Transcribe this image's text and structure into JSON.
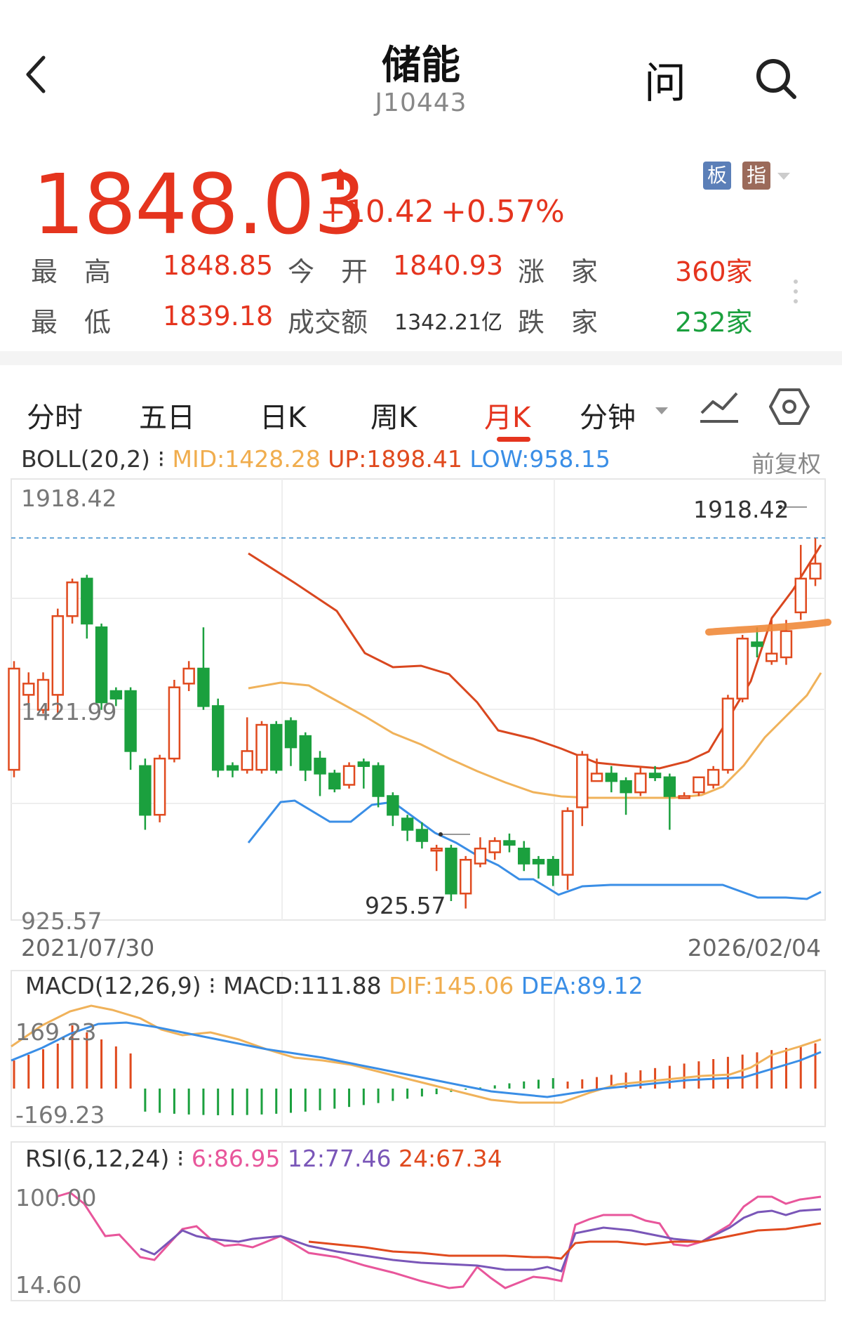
{
  "header": {
    "title": "储能",
    "code": "J10443",
    "ask_label": "问"
  },
  "quote": {
    "price": "1848.03",
    "change": "+10.42",
    "change_pct": "+0.57%",
    "tag_board": "板",
    "tag_index": "指",
    "stats": {
      "high_label": "最　高",
      "high_value": "1848.85",
      "open_label": "今　开",
      "open_value": "1840.93",
      "up_label": "涨　家",
      "up_value": "360家",
      "low_label": "最　低",
      "low_value": "1839.18",
      "amount_label": "成交额",
      "amount_value": "1342.21亿",
      "down_label": "跌　家",
      "down_value": "232家"
    },
    "colors": {
      "up": "#e5341e",
      "down": "#1ba03e"
    }
  },
  "tabs": {
    "items": [
      "分时",
      "五日",
      "日K",
      "周K",
      "月K",
      "分钟"
    ],
    "active": "月K"
  },
  "boll": {
    "title": "BOLL(20,2)",
    "mid": "MID:1428.28",
    "up": "UP:1898.41",
    "low": "LOW:958.15",
    "adjust": "前复权"
  },
  "chart_data": {
    "type": "candlestick",
    "y_axis_top": "1918.42",
    "y_axis_mid": "1421.99",
    "y_axis_bottom": "925.57",
    "max_annotation": "1918.42",
    "min_annotation": "925.57",
    "date_start": "2021/07/30",
    "date_end": "2026/02/04",
    "ylim": [
      925.57,
      1918.42
    ],
    "candles": [
      {
        "o": 1300,
        "c": 1570,
        "h": 1590,
        "l": 1280
      },
      {
        "o": 1500,
        "c": 1530,
        "h": 1560,
        "l": 1450
      },
      {
        "o": 1460,
        "c": 1540,
        "h": 1560,
        "l": 1450
      },
      {
        "o": 1500,
        "c": 1710,
        "h": 1730,
        "l": 1450
      },
      {
        "o": 1710,
        "c": 1800,
        "h": 1810,
        "l": 1690
      },
      {
        "o": 1810,
        "c": 1690,
        "h": 1820,
        "l": 1650
      },
      {
        "o": 1680,
        "c": 1480,
        "h": 1690,
        "l": 1460
      },
      {
        "o": 1510,
        "c": 1490,
        "h": 1520,
        "l": 1470
      },
      {
        "o": 1510,
        "c": 1350,
        "h": 1520,
        "l": 1300
      },
      {
        "o": 1310,
        "c": 1180,
        "h": 1330,
        "l": 1140
      },
      {
        "o": 1180,
        "c": 1330,
        "h": 1340,
        "l": 1160
      },
      {
        "o": 1330,
        "c": 1520,
        "h": 1540,
        "l": 1320
      },
      {
        "o": 1530,
        "c": 1570,
        "h": 1590,
        "l": 1510
      },
      {
        "o": 1570,
        "c": 1470,
        "h": 1680,
        "l": 1460
      },
      {
        "o": 1470,
        "c": 1300,
        "h": 1490,
        "l": 1280
      },
      {
        "o": 1310,
        "c": 1300,
        "h": 1320,
        "l": 1280
      },
      {
        "o": 1300,
        "c": 1350,
        "h": 1440,
        "l": 1290
      },
      {
        "o": 1300,
        "c": 1420,
        "h": 1430,
        "l": 1290
      },
      {
        "o": 1420,
        "c": 1300,
        "h": 1430,
        "l": 1290
      },
      {
        "o": 1430,
        "c": 1360,
        "h": 1440,
        "l": 1310
      },
      {
        "o": 1390,
        "c": 1300,
        "h": 1400,
        "l": 1270
      },
      {
        "o": 1330,
        "c": 1290,
        "h": 1350,
        "l": 1230
      },
      {
        "o": 1290,
        "c": 1250,
        "h": 1300,
        "l": 1240
      },
      {
        "o": 1260,
        "c": 1310,
        "h": 1320,
        "l": 1250
      },
      {
        "o": 1320,
        "c": 1310,
        "h": 1330,
        "l": 1250
      },
      {
        "o": 1310,
        "c": 1230,
        "h": 1320,
        "l": 1200
      },
      {
        "o": 1230,
        "c": 1180,
        "h": 1240,
        "l": 1150
      },
      {
        "o": 1170,
        "c": 1140,
        "h": 1180,
        "l": 1110
      },
      {
        "o": 1140,
        "c": 1110,
        "h": 1160,
        "l": 1090
      },
      {
        "o": 1090,
        "c": 1090,
        "h": 1100,
        "l": 1030
      },
      {
        "o": 1090,
        "c": 970,
        "h": 1100,
        "l": 950
      },
      {
        "o": 970,
        "c": 1060,
        "h": 1070,
        "l": 930
      },
      {
        "o": 1050,
        "c": 1090,
        "h": 1120,
        "l": 1040
      },
      {
        "o": 1080,
        "c": 1110,
        "h": 1120,
        "l": 1060
      },
      {
        "o": 1110,
        "c": 1100,
        "h": 1130,
        "l": 1080
      },
      {
        "o": 1090,
        "c": 1050,
        "h": 1110,
        "l": 1030
      },
      {
        "o": 1060,
        "c": 1050,
        "h": 1070,
        "l": 1010
      },
      {
        "o": 1060,
        "c": 1020,
        "h": 1070,
        "l": 990
      },
      {
        "o": 1020,
        "c": 1190,
        "h": 1200,
        "l": 980
      },
      {
        "o": 1200,
        "c": 1340,
        "h": 1350,
        "l": 1150
      },
      {
        "o": 1270,
        "c": 1290,
        "h": 1330,
        "l": 1270
      },
      {
        "o": 1290,
        "c": 1270,
        "h": 1310,
        "l": 1240
      },
      {
        "o": 1270,
        "c": 1240,
        "h": 1280,
        "l": 1180
      },
      {
        "o": 1240,
        "c": 1290,
        "h": 1310,
        "l": 1230
      },
      {
        "o": 1290,
        "c": 1280,
        "h": 1310,
        "l": 1270
      },
      {
        "o": 1280,
        "c": 1230,
        "h": 1290,
        "l": 1140
      },
      {
        "o": 1230,
        "c": 1230,
        "h": 1240,
        "l": 1230
      },
      {
        "o": 1240,
        "c": 1280,
        "h": 1280,
        "l": 1230
      },
      {
        "o": 1260,
        "c": 1300,
        "h": 1310,
        "l": 1250
      },
      {
        "o": 1300,
        "c": 1490,
        "h": 1500,
        "l": 1290
      },
      {
        "o": 1490,
        "c": 1650,
        "h": 1660,
        "l": 1480
      },
      {
        "o": 1640,
        "c": 1630,
        "h": 1680,
        "l": 1600
      },
      {
        "o": 1590,
        "c": 1610,
        "h": 1700,
        "l": 1580
      },
      {
        "o": 1600,
        "c": 1670,
        "h": 1700,
        "l": 1580
      },
      {
        "o": 1720,
        "c": 1810,
        "h": 1900,
        "l": 1700
      },
      {
        "o": 1810,
        "c": 1850,
        "h": 1918,
        "l": 1790
      }
    ]
  },
  "macd": {
    "title": "MACD(12,26,9)",
    "macd": "MACD:111.88",
    "dif": "DIF:145.06",
    "dea": "DEA:89.12",
    "y_top": "169.23",
    "y_bottom": "-169.23"
  },
  "rsi": {
    "title": "RSI(6,12,24)",
    "rsi6": "6:86.95",
    "rsi12": "12:77.46",
    "rsi24": "24:67.34",
    "y_top": "100.00",
    "y_bottom": "14.60"
  }
}
